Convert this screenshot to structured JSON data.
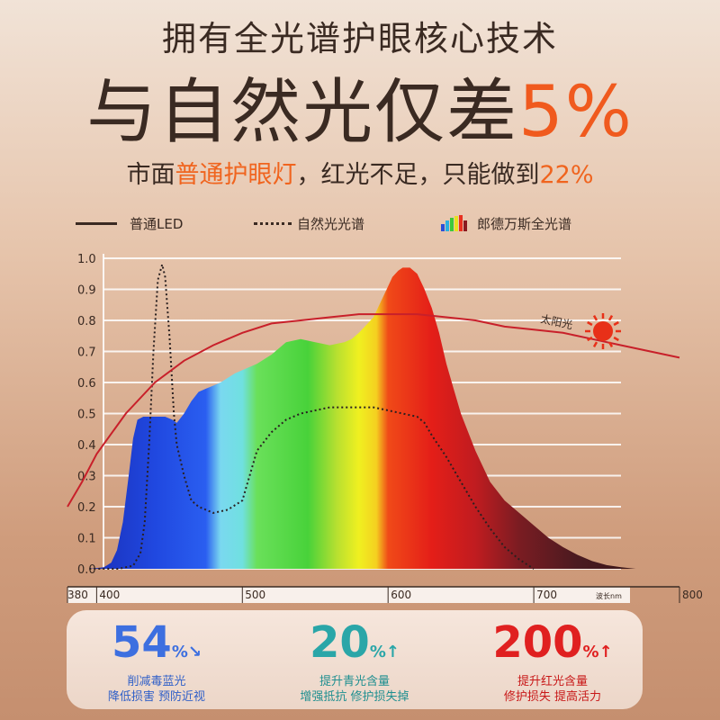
{
  "header": {
    "line1": "拥有全光谱护眼核心技术",
    "line2_main": "与自然光仅差",
    "line2_highlight": "5%",
    "line3_part1": "市面",
    "line3_highlight1": "普通护眼灯",
    "line3_part2": "，红光不足，只能做到",
    "line3_highlight2": "22%"
  },
  "legend": {
    "led": "普通LED",
    "natural": "自然光光谱",
    "full": "郎德万斯全光谱"
  },
  "colors": {
    "accent_orange": "#f05a1e",
    "blue_stat": "#3d6fe0",
    "teal_stat": "#2aa6a8",
    "red_stat": "#e02020",
    "sun_curve": "#c8202a",
    "text_dark": "#3a2a22"
  },
  "chart_data": {
    "type": "area",
    "x_ticks": [
      "380",
      "400",
      "500",
      "600",
      "700",
      "800"
    ],
    "x_unit": "波长nm",
    "y_ticks": [
      "0.0",
      "0.1",
      "0.2",
      "0.3",
      "0.4",
      "0.5",
      "0.6",
      "0.7",
      "0.8",
      "0.9",
      "1.0"
    ],
    "ylim": [
      0,
      1.0
    ],
    "xlim": [
      380,
      800
    ],
    "grid": true,
    "annotations": [
      "太阳光"
    ],
    "series": [
      {
        "name": "郎德万斯全光谱",
        "style": "spectrum-fill",
        "x": [
          395,
          405,
          410,
          414,
          418,
          422,
          425,
          428,
          432,
          437,
          442,
          447,
          452,
          455,
          460,
          465,
          470,
          475,
          480,
          485,
          495,
          500,
          505,
          510,
          520,
          530,
          540,
          550,
          560,
          570,
          575,
          580,
          590,
          595,
          600,
          603,
          607,
          610,
          615,
          620,
          625,
          630,
          635,
          640,
          645,
          650,
          660,
          670,
          680,
          690,
          700,
          710,
          720,
          730,
          740,
          750,
          760,
          770
        ],
        "y": [
          0.0,
          0.005,
          0.02,
          0.06,
          0.15,
          0.3,
          0.42,
          0.48,
          0.49,
          0.49,
          0.49,
          0.49,
          0.48,
          0.47,
          0.5,
          0.54,
          0.57,
          0.58,
          0.59,
          0.6,
          0.63,
          0.64,
          0.65,
          0.66,
          0.69,
          0.73,
          0.74,
          0.73,
          0.72,
          0.73,
          0.74,
          0.76,
          0.81,
          0.86,
          0.91,
          0.94,
          0.96,
          0.97,
          0.97,
          0.95,
          0.9,
          0.84,
          0.76,
          0.66,
          0.58,
          0.5,
          0.38,
          0.28,
          0.22,
          0.18,
          0.14,
          0.1,
          0.07,
          0.045,
          0.025,
          0.012,
          0.005,
          0.0
        ]
      },
      {
        "name": "自然光光谱",
        "style": "dotted",
        "x": [
          395,
          405,
          415,
          425,
          430,
          433,
          436,
          439,
          442,
          445,
          447,
          450,
          453,
          455,
          460,
          465,
          470,
          480,
          490,
          500,
          505,
          510,
          520,
          530,
          540,
          550,
          560,
          570,
          580,
          590,
          600,
          610,
          620,
          625,
          630,
          640,
          650,
          660,
          670,
          680,
          690,
          700
        ],
        "y": [
          0.0,
          0.0,
          0.0,
          0.01,
          0.05,
          0.15,
          0.4,
          0.7,
          0.93,
          0.98,
          0.94,
          0.75,
          0.5,
          0.4,
          0.3,
          0.22,
          0.2,
          0.18,
          0.19,
          0.22,
          0.3,
          0.38,
          0.44,
          0.48,
          0.5,
          0.51,
          0.52,
          0.52,
          0.52,
          0.52,
          0.51,
          0.5,
          0.49,
          0.47,
          0.43,
          0.36,
          0.28,
          0.2,
          0.13,
          0.07,
          0.03,
          0.0
        ]
      },
      {
        "name": "太阳光",
        "style": "solid-red",
        "x": [
          380,
          390,
          400,
          420,
          440,
          460,
          480,
          500,
          520,
          540,
          560,
          580,
          600,
          620,
          640,
          660,
          680,
          700,
          720,
          740,
          760,
          780,
          800
        ],
        "y": [
          0.2,
          0.28,
          0.37,
          0.5,
          0.6,
          0.67,
          0.72,
          0.76,
          0.79,
          0.8,
          0.81,
          0.82,
          0.82,
          0.82,
          0.81,
          0.8,
          0.78,
          0.77,
          0.76,
          0.74,
          0.72,
          0.7,
          0.68
        ]
      }
    ]
  },
  "stats": [
    {
      "value": "54",
      "unit": "%",
      "arrow": "↘",
      "line1": "削减毒蓝光",
      "line2": "降低损害 预防近视"
    },
    {
      "value": "20",
      "unit": "%",
      "arrow": "↑",
      "line1": "提升青光含量",
      "line2": "增强抵抗 修护损失掉"
    },
    {
      "value": "200",
      "unit": "%",
      "arrow": "↑",
      "line1": "提升红光含量",
      "line2": "修护损失 提高活力"
    }
  ]
}
